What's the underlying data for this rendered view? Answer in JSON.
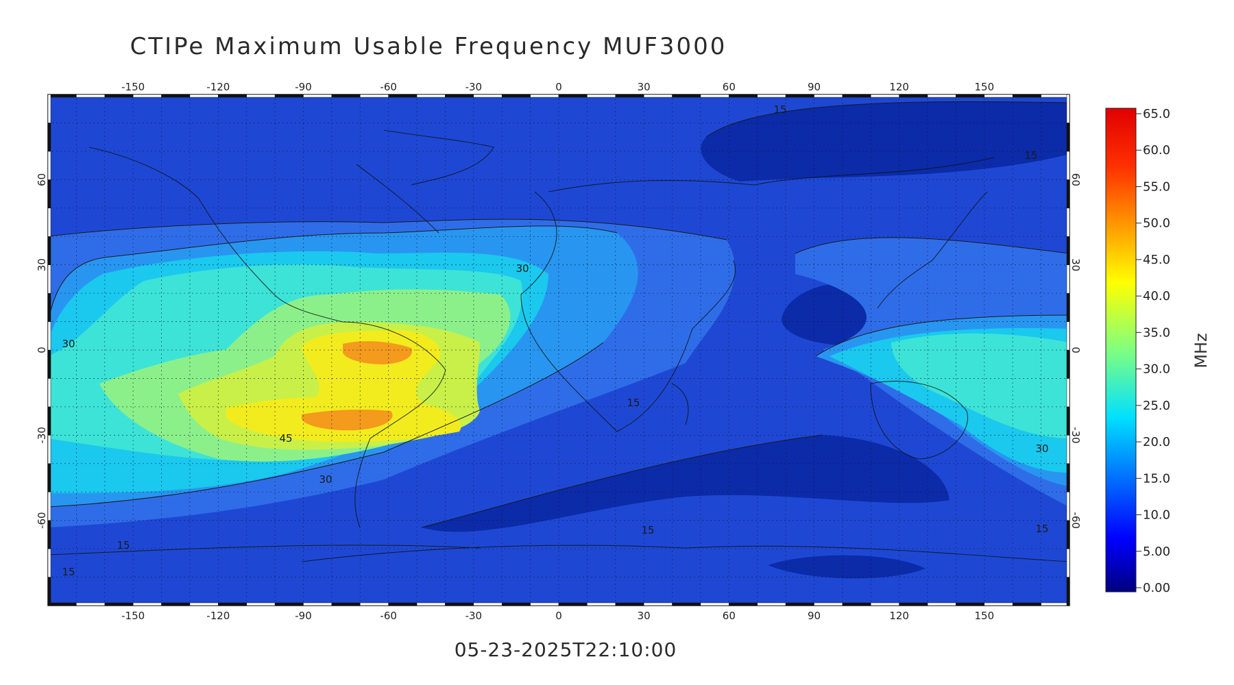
{
  "title": "CTIPe Maximum Usable Frequency MUF3000",
  "timestamp": "05-23-2025T22:10:00",
  "map": {
    "lon_ticks": [
      "-150",
      "-120",
      "-90",
      "-60",
      "-30",
      "0",
      "30",
      "60",
      "90",
      "120",
      "150"
    ],
    "lat_ticks": [
      "60",
      "30",
      "0",
      "-30",
      "-60"
    ],
    "contour_labels": [
      "30",
      "30",
      "45",
      "30",
      "15",
      "15",
      "15",
      "15",
      "30",
      "15",
      "15",
      "15"
    ]
  },
  "colorbar": {
    "unit": "MHz",
    "ticks": [
      "65.0",
      "60.0",
      "55.0",
      "50.0",
      "45.0",
      "40.0",
      "35.0",
      "30.0",
      "25.0",
      "20.0",
      "15.0",
      "10.0",
      "5.00",
      "0.00"
    ],
    "colors": {
      "l0": "#0b2ba8",
      "l1": "#1e48d4",
      "l2": "#2f6de8",
      "l3": "#2896f0",
      "l4": "#1bc8ee",
      "l5": "#3de3d6",
      "l6": "#8cf08a",
      "l7": "#c8f048",
      "l8": "#f2ec1e",
      "l9": "#f49a1c"
    }
  }
}
